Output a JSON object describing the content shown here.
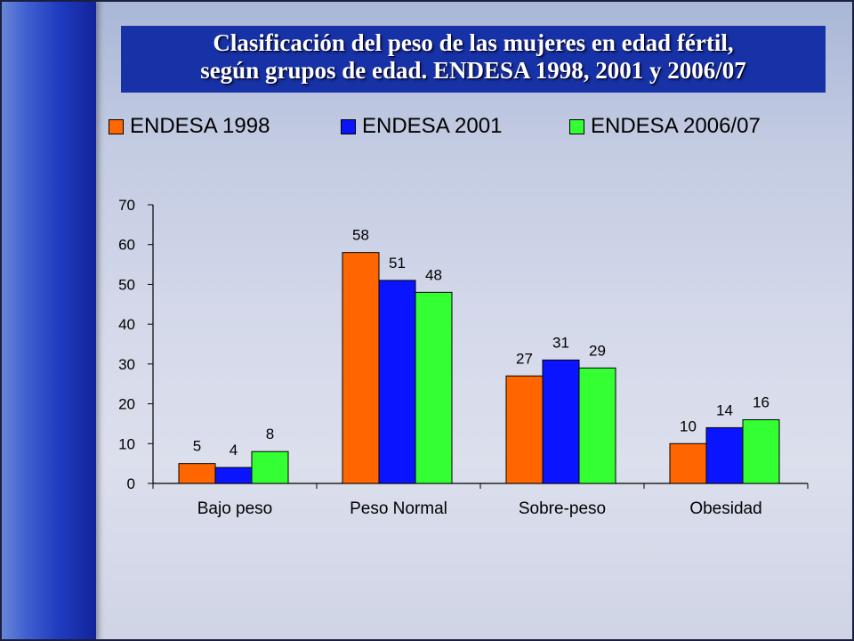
{
  "title": {
    "line1": "Clasificación del peso de las mujeres en edad fértil,",
    "line2": "según grupos de edad. ENDESA 1998, 2001 y 2006/07"
  },
  "colors": {
    "sidebar": "#1f3bbf",
    "title_bg": "#1731a6"
  },
  "chart_data": {
    "type": "bar",
    "categories": [
      "Bajo peso",
      "Peso Normal",
      "Sobre-peso",
      "Obesidad"
    ],
    "series": [
      {
        "name": "ENDESA 1998",
        "color": "#ff6600",
        "values": [
          5,
          58,
          27,
          10
        ],
        "labels": [
          "5",
          "58",
          "27",
          "10"
        ]
      },
      {
        "name": "ENDESA 2001",
        "color": "#0a14ff",
        "values": [
          4,
          51,
          31,
          14
        ],
        "labels": [
          "4",
          "51",
          "31",
          "14"
        ]
      },
      {
        "name": "ENDESA 2006/07",
        "color": "#33ff33",
        "values": [
          8,
          48,
          29,
          16
        ],
        "labels": [
          "8",
          "48",
          "29",
          "16"
        ]
      }
    ],
    "yticks": [
      "0",
      "10",
      "20",
      "30",
      "40",
      "50",
      "60",
      "70"
    ],
    "ylim": [
      0,
      70
    ],
    "grid": false,
    "legend_position": "top"
  }
}
